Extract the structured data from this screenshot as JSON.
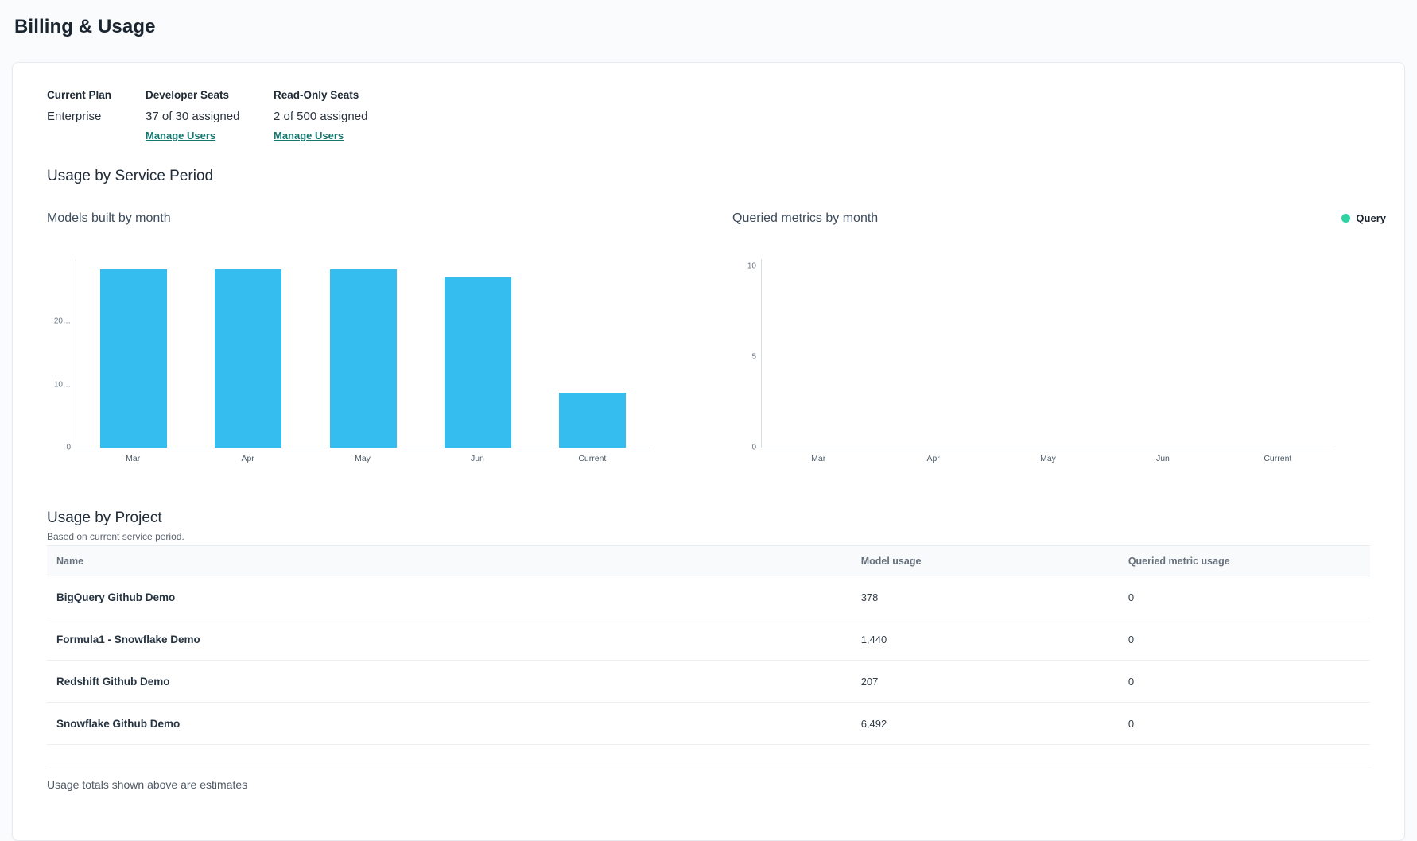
{
  "page": {
    "title": "Billing & Usage"
  },
  "plan_summary": {
    "items": [
      {
        "label": "Current Plan",
        "value": "Enterprise"
      },
      {
        "label": "Developer Seats",
        "value": "37 of 30 assigned",
        "link": "Manage Users"
      },
      {
        "label": "Read-Only Seats",
        "value": "2 of 500 assigned",
        "link": "Manage Users"
      }
    ]
  },
  "usage_section_title": "Usage by Service Period",
  "chart_data": [
    {
      "type": "bar",
      "title": "Models built by month",
      "categories": [
        "Mar",
        "Apr",
        "May",
        "Jun",
        "Current"
      ],
      "values": [
        28300,
        28300,
        28300,
        27000,
        8700
      ],
      "xlabel": "",
      "ylabel": "",
      "ylim": [
        0,
        30000
      ],
      "yticks": [
        {
          "value": 0,
          "label": "0"
        },
        {
          "value": 10000,
          "label": "10…"
        },
        {
          "value": 20000,
          "label": "20…"
        }
      ],
      "bar_color": "#35bdf0",
      "grid": false,
      "legend_position": "none"
    },
    {
      "type": "bar",
      "title": "Queried metrics by month",
      "categories": [
        "Mar",
        "Apr",
        "May",
        "Jun",
        "Current"
      ],
      "series": [
        {
          "name": "Query",
          "values": [
            0,
            0,
            0,
            0,
            0
          ]
        }
      ],
      "values": [
        0,
        0,
        0,
        0,
        0
      ],
      "xlabel": "",
      "ylabel": "",
      "ylim": [
        0,
        10
      ],
      "yticks": [
        {
          "value": 0,
          "label": "0"
        },
        {
          "value": 5,
          "label": "5"
        },
        {
          "value": 10,
          "label": "10"
        }
      ],
      "bar_color": "#2ed3a3",
      "grid": false,
      "legend": {
        "label": "Query",
        "color": "#2ed3a3"
      },
      "legend_position": "top-right"
    }
  ],
  "projects_table": {
    "title": "Usage by Project",
    "subtitle": "Based on current service period.",
    "columns": [
      "Name",
      "Model usage",
      "Queried metric usage"
    ],
    "rows": [
      {
        "name": "BigQuery Github Demo",
        "model_usage": "378",
        "queried_metric_usage": "0"
      },
      {
        "name": "Formula1 - Snowflake Demo",
        "model_usage": "1,440",
        "queried_metric_usage": "0"
      },
      {
        "name": "Redshift Github Demo",
        "model_usage": "207",
        "queried_metric_usage": "0"
      },
      {
        "name": "Snowflake Github Demo",
        "model_usage": "6,492",
        "queried_metric_usage": "0"
      }
    ],
    "footnote": "Usage totals shown above are estimates"
  },
  "colors": {
    "bar_blue": "#35bdf0",
    "legend_green": "#2ed3a3",
    "link_teal": "#12776f",
    "heading_navy": "#1b2530"
  }
}
